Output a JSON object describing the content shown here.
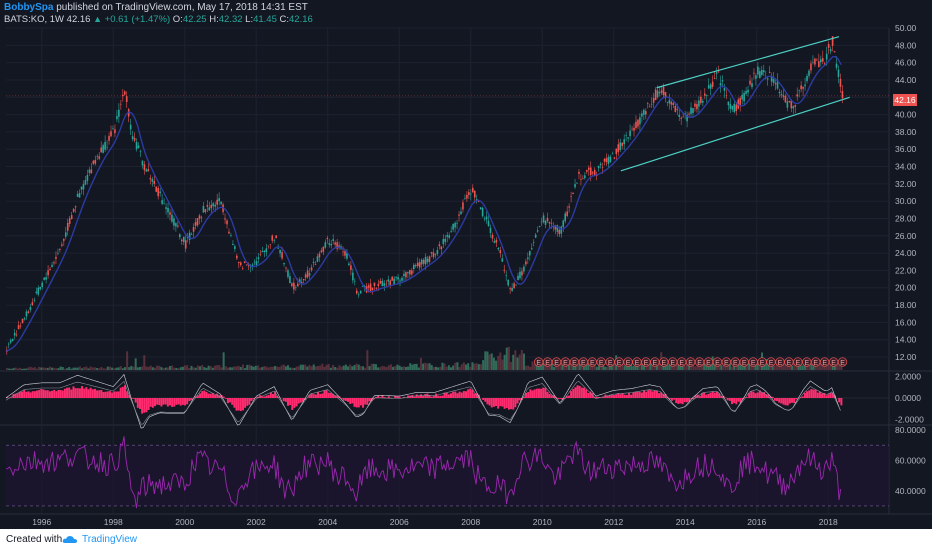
{
  "header": {
    "author": "BobbySpa",
    "published": "published on TradingView.com, May 17, 2018 14:31 EST"
  },
  "quote": {
    "symbol": "BATS:KO, 1W",
    "last": "42.16",
    "change": "+0.61 (+1.47%)",
    "o_label": "O:",
    "o": "42.25",
    "h_label": "H:",
    "h": "42.32",
    "l_label": "L:",
    "l": "41.45",
    "c_label": "C:",
    "c": "42.16"
  },
  "price_tag": "42.16",
  "footer": {
    "created": "Created with",
    "brand": "TradingView"
  },
  "colors": {
    "background": "#131722",
    "channel": "#4dd0c4",
    "macd_hist": "#ff2d6f",
    "rsi": "#9c27b0",
    "volume": "#3c8a6e",
    "price_tag": "#ef5350"
  },
  "chart_data": [
    {
      "type": "line",
      "pane": "price",
      "series": [
        {
          "x": [
            1995.0,
            1995.5,
            1996.0,
            1996.5,
            1997.0,
            1997.5,
            1998.0,
            1998.3,
            1998.5,
            1998.8,
            1999.0,
            1999.5,
            2000.0,
            2000.5,
            2001.0,
            2001.5,
            2002.0,
            2002.5,
            2003.0,
            2003.5,
            2004.0,
            2004.5,
            2004.8,
            2005.5,
            2006.0,
            2006.5,
            2007.0,
            2007.5,
            2008.0,
            2008.5,
            2008.8,
            2009.1,
            2009.5,
            2010.0,
            2010.5,
            2011.0,
            2011.5,
            2012.0,
            2012.5,
            2013.0,
            2013.3,
            2013.7,
            2014.0,
            2014.5,
            2014.9,
            2015.3,
            2015.7,
            2016.0,
            2016.4,
            2016.8,
            2017.0,
            2017.5,
            2017.9,
            2018.1,
            2018.38
          ],
          "values": [
            13.0,
            16.5,
            20.5,
            24.5,
            30.5,
            35.0,
            38.0,
            43.0,
            38.0,
            34.5,
            33.0,
            29.0,
            25.0,
            29.0,
            30.0,
            22.5,
            23.0,
            26.0,
            20.0,
            22.0,
            25.5,
            24.0,
            19.5,
            20.5,
            21.0,
            22.5,
            24.0,
            27.0,
            31.5,
            27.0,
            24.0,
            19.5,
            22.5,
            28.0,
            26.5,
            33.0,
            33.5,
            35.5,
            38.0,
            41.5,
            43.0,
            40.5,
            39.5,
            42.0,
            44.5,
            40.5,
            42.5,
            45.0,
            44.5,
            41.5,
            41.0,
            45.5,
            46.5,
            48.5,
            42.16
          ]
        }
      ],
      "ylim": [
        10.5,
        50.0
      ],
      "xlim": [
        1995.0,
        2019.7
      ],
      "yticks": [
        "50.00",
        "48.00",
        "46.00",
        "44.00",
        "42.00",
        "40.00",
        "38.00",
        "36.00",
        "34.00",
        "32.00",
        "30.00",
        "28.00",
        "26.00",
        "24.00",
        "22.00",
        "20.00",
        "18.00",
        "16.00",
        "14.00",
        "12.00"
      ],
      "xticks": [
        "1996",
        "1998",
        "2000",
        "2002",
        "2004",
        "2006",
        "2008",
        "2010",
        "2012",
        "2014",
        "2016",
        "2018"
      ],
      "channel": {
        "upper": [
          [
            2013.2,
            43.1
          ],
          [
            2018.3,
            49.0
          ]
        ],
        "lower": [
          [
            2012.2,
            33.5
          ],
          [
            2018.6,
            42.0
          ]
        ]
      },
      "earnings_markers": "E",
      "grid": true
    },
    {
      "type": "line",
      "pane": "macd",
      "yticks": [
        "2.0000",
        "0.0000",
        "-2.0000"
      ],
      "ylim": [
        -2.4,
        2.4
      ]
    },
    {
      "type": "line",
      "pane": "rsi",
      "yticks": [
        "80.0000",
        "60.0000",
        "40.0000"
      ],
      "ylim": [
        26,
        82
      ],
      "levels": [
        70,
        30
      ]
    }
  ]
}
